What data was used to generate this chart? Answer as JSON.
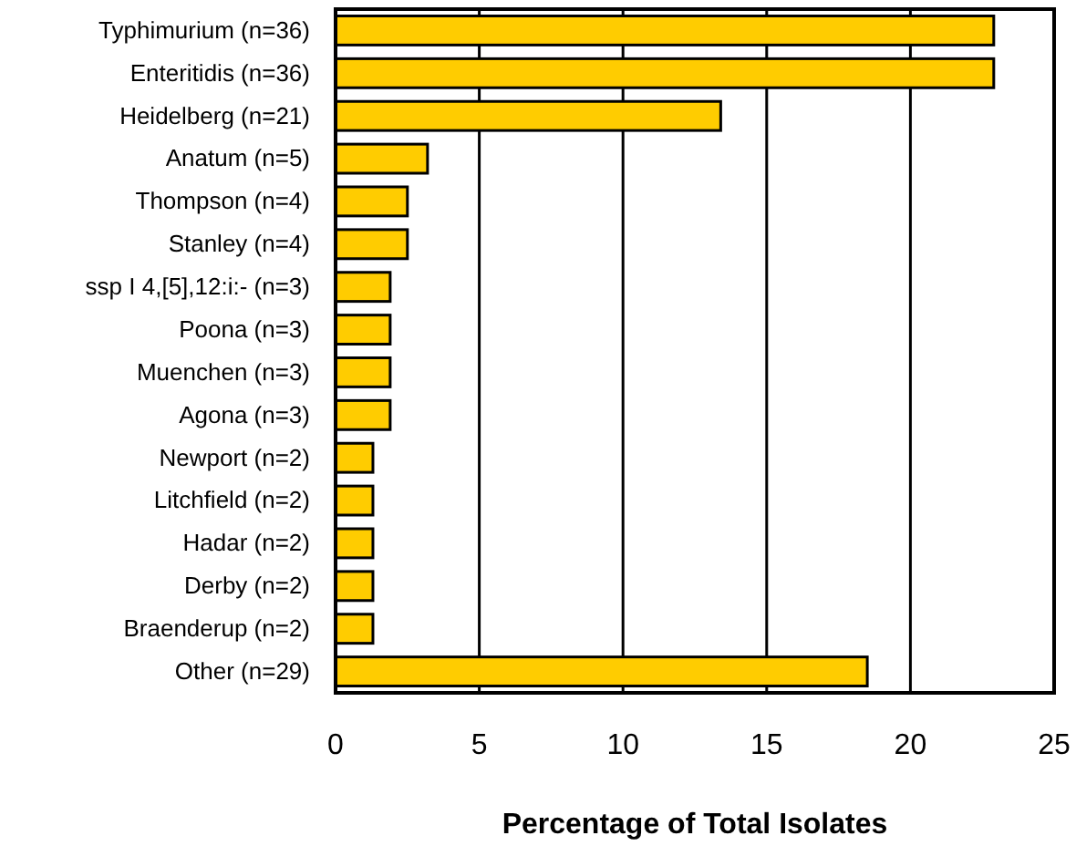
{
  "chart_data": {
    "type": "bar",
    "orientation": "horizontal",
    "xlabel": "Percentage of Total Isolates",
    "categories": [
      "Typhimurium (n=36)",
      "Enteritidis (n=36)",
      "Heidelberg (n=21)",
      "Anatum (n=5)",
      "Thompson (n=4)",
      "Stanley (n=4)",
      "ssp I 4,[5],12:i:- (n=3)",
      "Poona (n=3)",
      "Muenchen (n=3)",
      "Agona (n=3)",
      "Newport (n=2)",
      "Litchfield (n=2)",
      "Hadar (n=2)",
      "Derby (n=2)",
      "Braenderup (n=2)",
      "Other (n=29)"
    ],
    "values": [
      22.9,
      22.9,
      13.4,
      3.2,
      2.5,
      2.5,
      1.9,
      1.9,
      1.9,
      1.9,
      1.3,
      1.3,
      1.3,
      1.3,
      1.3,
      18.5
    ],
    "color": "#ffcc00",
    "xlim": [
      0,
      25
    ],
    "xticks": [
      0,
      5,
      10,
      15,
      20,
      25
    ],
    "grid": "x"
  }
}
